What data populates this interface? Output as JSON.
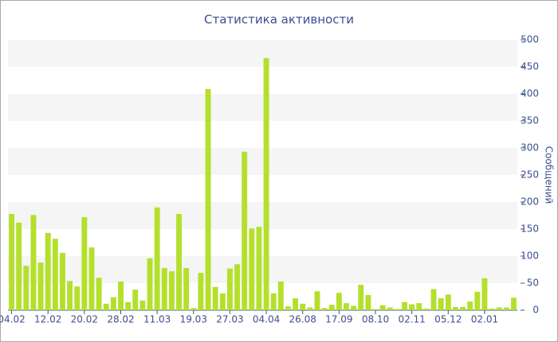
{
  "chart_data": {
    "type": "bar",
    "title": "Статистика активности",
    "y_label": "Сообщений",
    "y_axis_side": "right",
    "categories": [
      "04.02",
      null,
      null,
      null,
      null,
      "12.02",
      null,
      null,
      null,
      null,
      "20.02",
      null,
      null,
      null,
      null,
      "28.02",
      null,
      null,
      null,
      null,
      "11.03",
      null,
      null,
      null,
      null,
      "19.03",
      null,
      null,
      null,
      null,
      "27.03",
      null,
      null,
      null,
      null,
      "04.04",
      null,
      null,
      null,
      null,
      "26.08",
      null,
      null,
      null,
      null,
      "17.09",
      null,
      null,
      null,
      null,
      "08.10",
      null,
      null,
      null,
      null,
      "02.11",
      null,
      null,
      null,
      null,
      "05.12",
      null,
      null,
      null,
      null,
      "02.01",
      null,
      null,
      null,
      null
    ],
    "values": [
      178,
      162,
      82,
      176,
      88,
      143,
      132,
      106,
      54,
      44,
      172,
      116,
      60,
      12,
      24,
      53,
      15,
      38,
      18,
      96,
      190,
      78,
      72,
      178,
      78,
      4,
      69,
      409,
      43,
      31,
      77,
      85,
      293,
      151,
      154,
      466,
      31,
      53,
      7,
      22,
      12,
      5,
      35,
      4,
      10,
      32,
      13,
      8,
      47,
      28,
      2,
      9,
      5,
      2,
      15,
      11,
      13,
      3,
      39,
      22,
      29,
      6,
      6,
      16,
      34,
      59,
      3,
      5,
      5,
      23
    ],
    "color": "#b4e02d",
    "ylim": [
      0,
      500
    ],
    "yticks": [
      0,
      50,
      100,
      150,
      200,
      250,
      300,
      350,
      400,
      450,
      500
    ],
    "grid": true
  }
}
